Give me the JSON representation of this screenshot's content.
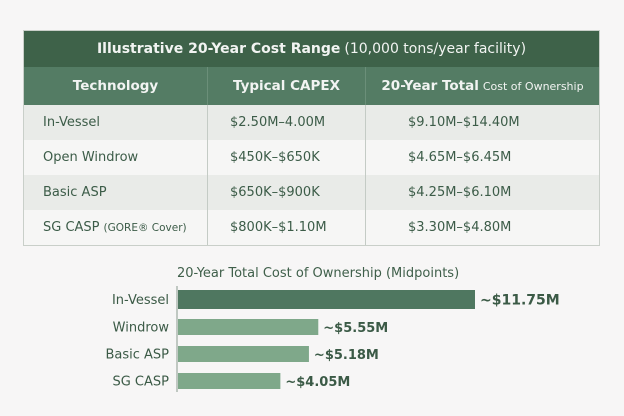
{
  "table": {
    "title_bold": "Illustrative 20-Year Cost Range",
    "title_sub": "(10,000 tons/year facility)",
    "headers": {
      "technology": "Technology",
      "capex": "Typical CAPEX",
      "total_bold": "20-Year Total",
      "total_sub": "Cost of Ownership"
    },
    "rows": [
      {
        "technology": "In-Vessel",
        "note": "",
        "capex": "$2.50M–4.00M",
        "total": "$9.10M–$14.40M"
      },
      {
        "technology": "Open Windrow",
        "note": "",
        "capex": "$450K–$650K",
        "total": "$4.65M–$6.45M"
      },
      {
        "technology": "Basic ASP",
        "note": "",
        "capex": "$650K–$900K",
        "total": "$4.25M–$6.10M"
      },
      {
        "technology": "SG CASP",
        "note": "(GORE® Cover)",
        "capex": "$800K–$1.10M",
        "total": "$3.30M–$4.80M"
      }
    ]
  },
  "chart_data": {
    "type": "bar",
    "orientation": "horizontal",
    "title": "20-Year Total Cost of Ownership (Midpoints)",
    "categories": [
      "In-Vessel",
      "Windrow",
      "Basic ASP",
      "SG CASP"
    ],
    "values": [
      11.75,
      5.55,
      5.18,
      4.05
    ],
    "labels": [
      "~$11.75M",
      "~$5.55M",
      "~$5.18M",
      "~$4.05M"
    ],
    "unit": "$M",
    "xlim": [
      0,
      11.75
    ],
    "grid": false,
    "colors": {
      "highlight": "#4f7760",
      "normal": "#7fa88a",
      "text": "#3b5a46"
    }
  }
}
